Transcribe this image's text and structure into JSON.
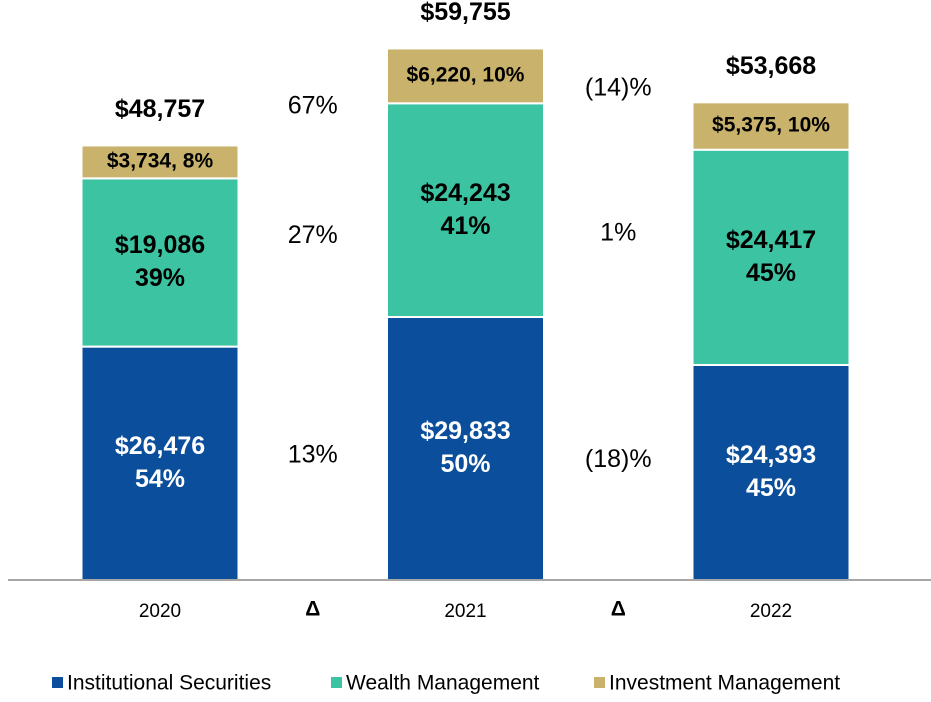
{
  "chart_data": {
    "type": "stacked-bar",
    "categories": [
      "2020",
      "2021",
      "2022"
    ],
    "ylim": [
      0,
      65000
    ],
    "series": [
      {
        "name": "Institutional Securities",
        "color": "#0b4f9c",
        "values": [
          26476,
          29833,
          24393
        ],
        "value_labels": [
          "$26,476",
          "$29,833",
          "$24,393"
        ],
        "shares": [
          54,
          50,
          45
        ],
        "share_labels": [
          "54%",
          "50%",
          "45%"
        ]
      },
      {
        "name": "Wealth Management",
        "color": "#3cc3a2",
        "values": [
          19086,
          24243,
          24417
        ],
        "value_labels": [
          "$19,086",
          "$24,243",
          "$24,417"
        ],
        "shares": [
          39,
          41,
          45
        ],
        "share_labels": [
          "39%",
          "41%",
          "45%"
        ]
      },
      {
        "name": "Investment Management",
        "color": "#c9b26b",
        "values": [
          3734,
          6220,
          5375
        ],
        "value_labels": [
          "$3,734, 8%",
          "$6,220, 10%",
          "$5,375, 10%"
        ]
      }
    ],
    "totals": {
      "values": [
        48757,
        59755,
        53668
      ],
      "value_labels": [
        "$48,757",
        "$59,755",
        "$53,668"
      ]
    },
    "changes": [
      {
        "label": "Δ",
        "values": [
          13,
          27,
          67
        ],
        "value_labels": [
          "13%",
          "27%",
          "67%"
        ]
      },
      {
        "label": "Δ",
        "values": [
          -18,
          1,
          -14
        ],
        "value_labels": [
          "(18)%",
          "1%",
          "(14)%"
        ]
      }
    ]
  }
}
